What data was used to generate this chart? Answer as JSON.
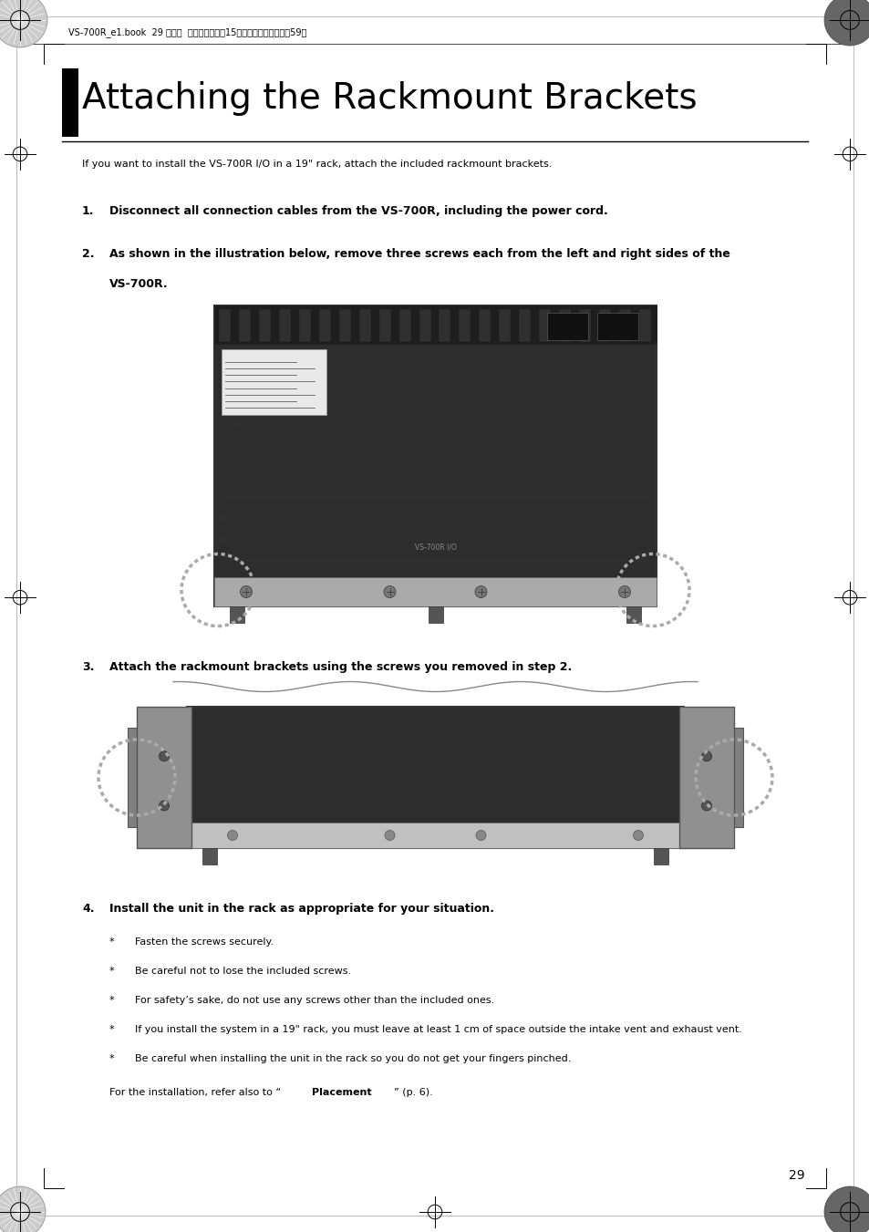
{
  "bg_color": "#ffffff",
  "page_width": 9.54,
  "page_height": 13.51,
  "header_text": "VS-700R_e1.book  29 ページ  ２０１０年６月15日　火曜日　午後４晎59分",
  "header_fontsize": 7.0,
  "title": "Attaching the Rackmount Brackets",
  "title_fontsize": 28,
  "intro_text": "If you want to install the VS-700R I/O in a 19\" rack, attach the included rackmount brackets.",
  "intro_fontsize": 8.0,
  "step1_text": "Disconnect all connection cables from the VS-700R, including the power cord.",
  "step2_line1": "As shown in the illustration below, remove three screws each from the left and right sides of the",
  "step2_line2": "VS-700R.",
  "step3_text": "Attach the rackmount brackets using the screws you removed in step 2.",
  "step4_text": "Install the unit in the rack as appropriate for your situation.",
  "bullet_items": [
    "Fasten the screws securely.",
    "Be careful not to lose the included screws.",
    "For safety’s sake, do not use any screws other than the included ones.",
    "If you install the system in a 19\" rack, you must leave at least 1 cm of space outside the intake vent and exhaust vent.",
    "Be careful when installing the unit in the rack so you do not get your fingers pinched."
  ],
  "device_dark": "#2d2d2d",
  "device_darker": "#1e1e1e",
  "device_silver": "#aaaaaa",
  "device_light_silver": "#c0c0c0",
  "device_mid": "#444444"
}
